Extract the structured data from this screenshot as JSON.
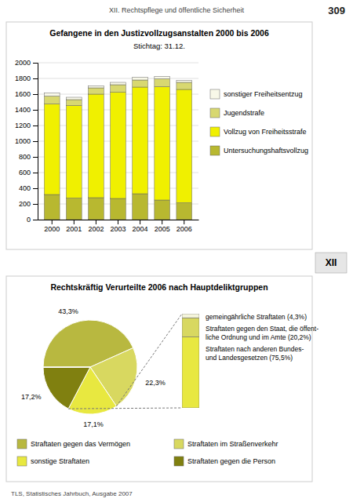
{
  "page_title": "XII. Rechtspflege und öffentliche Sicherheit",
  "page_number": "309",
  "page_tab": "XII",
  "footer": "TLS, Statistisches Jahrbuch, Ausgabe 2007",
  "chart_data": [
    {
      "type": "bar",
      "title": "Gefangene in den Justizvollzugsanstalten 2000 bis 2006",
      "subtitle": "Stichtag: 31.12.",
      "categories": [
        "2000",
        "2001",
        "2002",
        "2003",
        "2004",
        "2005",
        "2006"
      ],
      "series": [
        {
          "name": "Untersuchungshaftsvollzug",
          "color": "#b8b830",
          "values": [
            320,
            275,
            280,
            270,
            330,
            250,
            215
          ]
        },
        {
          "name": "Vollzug von Freiheitsstrafe",
          "color": "#f0f000",
          "values": [
            1155,
            1180,
            1320,
            1355,
            1360,
            1445,
            1445
          ]
        },
        {
          "name": "Jugendstrafe",
          "color": "#d8d870",
          "values": [
            100,
            75,
            80,
            95,
            90,
            100,
            90
          ]
        },
        {
          "name": "sonstiger Freiheitsentzug",
          "color": "#f8f8e8",
          "values": [
            40,
            30,
            25,
            30,
            35,
            30,
            25
          ]
        }
      ],
      "stacked": true,
      "ylim": [
        0,
        2000
      ],
      "yticks": [
        0,
        200,
        400,
        600,
        800,
        1000,
        1200,
        1400,
        1600,
        1800,
        2000
      ],
      "grid": true,
      "legend": "right"
    },
    {
      "type": "pie",
      "title": "Rechtskräftig Verurteilte 2006 nach Hauptdeliktgruppen",
      "categories": [
        "Straftaten gegen das Vermögen",
        "Straftaten im Straßenverkehr",
        "sonstige Straftaten",
        "Straftaten gegen die Person",
        null
      ],
      "values": [
        43.3,
        22.3,
        17.1,
        17.2,
        0.1
      ],
      "value_labels": [
        "43,3%",
        "22,3%",
        "17,1%",
        "17,2%",
        null
      ],
      "colors": [
        "#b8b840",
        "#d8d860",
        "#e8e840",
        "#808010",
        "#f5f5dc"
      ],
      "legend": "bottom"
    },
    {
      "type": "bar",
      "categories": [
        null
      ],
      "series": [
        {
          "name": "Straftaten nach anderen Bundes-\nund Landesgesetzen (75,5%)",
          "color": "#e8e840",
          "values": [
            75.5
          ]
        },
        {
          "name": "Straftaten gegen den Staat, die öffent-\nliche Ordnung und im Amte (20,2%)",
          "color": "#d8d860",
          "values": [
            20.2
          ]
        },
        {
          "name": "gemeingährliche Straftaten (4,3%)",
          "color": "#f5f5dc",
          "values": [
            4.3
          ]
        }
      ],
      "stacked": true,
      "ylim": [
        0,
        100
      ],
      "tick_labels": false
    }
  ]
}
